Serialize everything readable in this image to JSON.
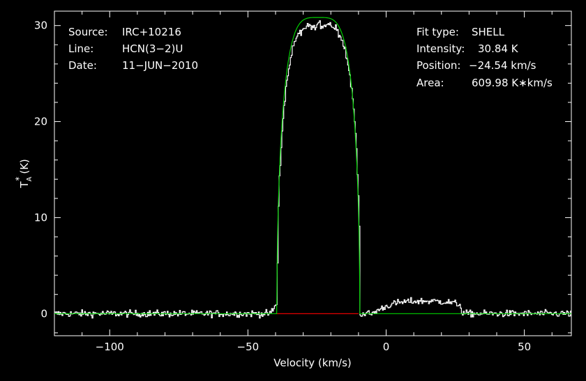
{
  "chart_data": {
    "type": "line",
    "xlabel": "Velocity (km/s)",
    "ylabel_main": "T",
    "ylabel_sub": "A",
    "ylabel_sup": "*",
    "ylabel_unit": "(K)",
    "xlim": [
      -120,
      67
    ],
    "ylim": [
      -2.3,
      31.5
    ],
    "xticks": [
      -100,
      -50,
      0,
      50
    ],
    "xtick_labels": [
      "−100",
      "−50",
      "0",
      "50"
    ],
    "yticks": [
      0,
      10,
      20,
      30
    ],
    "ytick_labels": [
      "0",
      "10",
      "20",
      "30"
    ],
    "info_left": [
      {
        "key": "Source:",
        "value": "IRC+10216"
      },
      {
        "key": "Line:",
        "value": "HCN(3−2)U"
      },
      {
        "key": "Date:",
        "value": "11−JUN−2010"
      }
    ],
    "info_right": [
      {
        "key": "Fit type:",
        "value": "SHELL"
      },
      {
        "key": "Intensity:",
        "value": "30.84 K"
      },
      {
        "key": "Position:",
        "value": "−24.54 km/s"
      },
      {
        "key": "Area:",
        "value": "609.98 K∗km/s"
      }
    ],
    "series": [
      {
        "kind": "spectrum",
        "color": "#ffffff",
        "channel_width": 0.34,
        "noise_rms": 0.25,
        "features": [
          {
            "type": "shell",
            "center": -24.5,
            "half_width": 15.0,
            "peak": 30.0
          },
          {
            "type": "shoulder",
            "from": -42.0,
            "to": -38.5,
            "level": 1.5
          },
          {
            "type": "wing",
            "from": -11.0,
            "to": 27.0,
            "center": 14.0,
            "peak": 1.3
          }
        ]
      },
      {
        "kind": "fit",
        "color": "#00d000",
        "center": -24.54,
        "half_width": 15.0,
        "peak": 30.84
      },
      {
        "kind": "window",
        "color": "#ff0000",
        "from": -40.0,
        "to": -10.0,
        "level": 0
      }
    ]
  }
}
